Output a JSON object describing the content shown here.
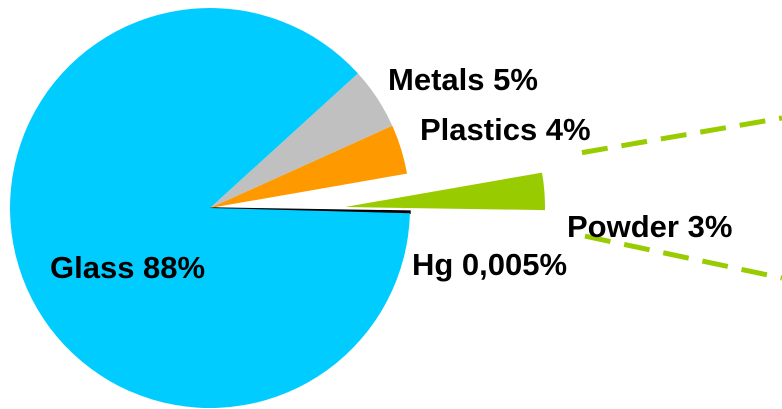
{
  "chart_data": {
    "type": "pie",
    "title": "",
    "slices": [
      {
        "name": "Glass",
        "label": "Glass 88%",
        "value": 88,
        "color": "#00ccff"
      },
      {
        "name": "Metals",
        "label": "Metals 5%",
        "value": 5,
        "color": "#c0c0c0"
      },
      {
        "name": "Plastics",
        "label": "Plastics 4%",
        "value": 4,
        "color": "#ff9900"
      },
      {
        "name": "Powder",
        "label": "Powder 3%",
        "value": 3,
        "color": "#99cc00",
        "exploded": true
      },
      {
        "name": "Hg",
        "label": "Hg 0,005%",
        "value": 0.005,
        "color": "#000000"
      }
    ],
    "exploded_callout": {
      "slice": "Powder",
      "line_color": "#99cc00",
      "line_style": "dashed"
    }
  }
}
